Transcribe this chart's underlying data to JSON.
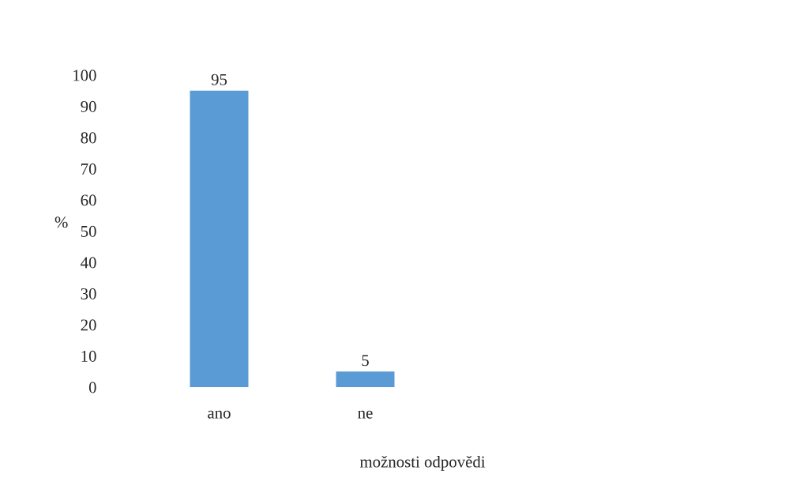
{
  "chart_data": {
    "type": "bar",
    "categories": [
      "ano",
      "ne"
    ],
    "values": [
      95,
      5
    ],
    "color": "#5b9bd5",
    "ylim": [
      0,
      100
    ],
    "yticks": [
      0,
      10,
      20,
      30,
      40,
      50,
      60,
      70,
      80,
      90,
      100
    ],
    "ylabel": "%",
    "xlabel": "možnosti odpovědi",
    "data_labels": true,
    "grid": false,
    "legend": false
  }
}
